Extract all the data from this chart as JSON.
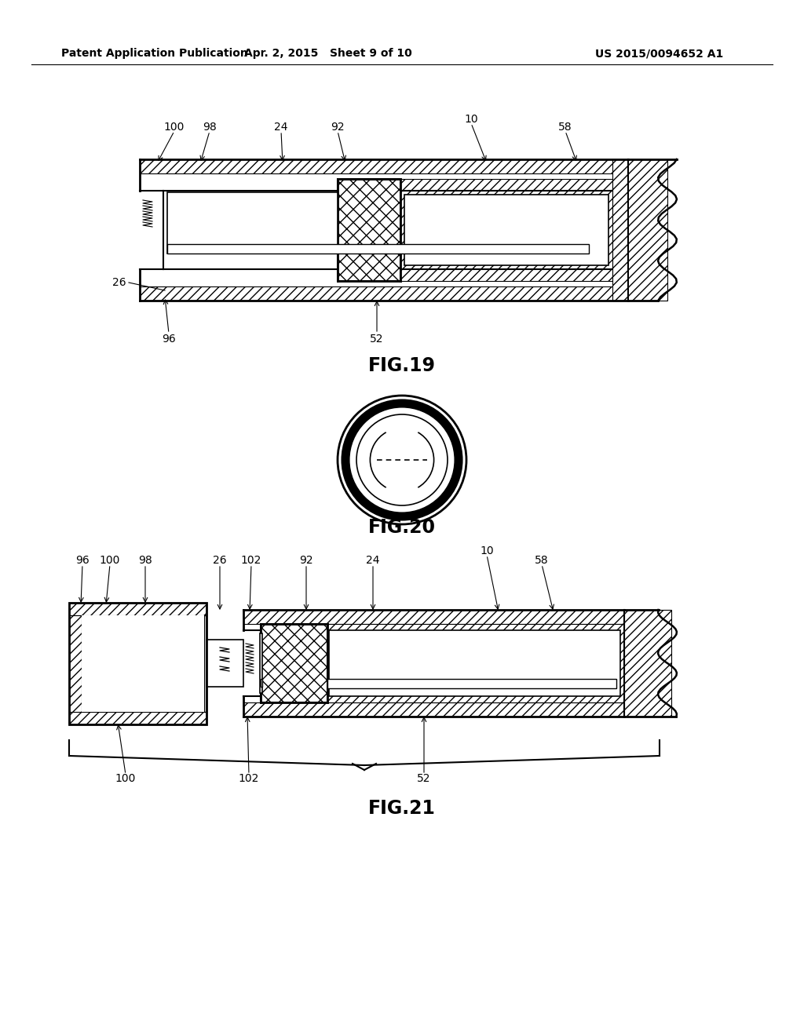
{
  "header_left": "Patent Application Publication",
  "header_mid": "Apr. 2, 2015   Sheet 9 of 10",
  "header_right": "US 2015/0094652 A1",
  "fig19_caption": "FIG.19",
  "fig20_caption": "FIG.20",
  "fig21_caption": "FIG.21",
  "bg_color": "#ffffff",
  "line_color": "#000000",
  "label_fontsize": 10,
  "caption_fontsize": 17,
  "header_fontsize": 10
}
